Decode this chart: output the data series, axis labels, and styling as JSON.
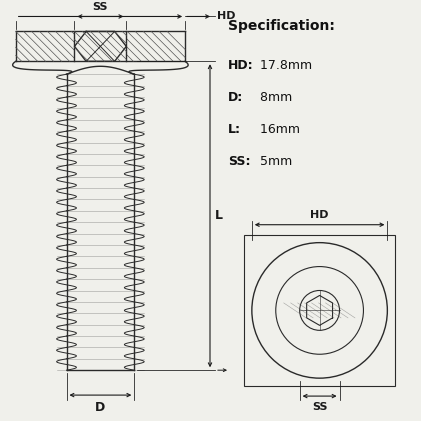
{
  "spec_title": "Specification:",
  "specs": [
    {
      "label": "HD:",
      "value": " 17.8mm"
    },
    {
      "label": "D:",
      "value": " 8mm"
    },
    {
      "label": "L:",
      "value": " 16mm"
    },
    {
      "label": "SS:",
      "value": " 5mm"
    }
  ],
  "line_color": "#2a2a2a",
  "hatch_color": "#555555",
  "bg_color": "#f0f0eb",
  "dim_color": "#1a1a1a"
}
